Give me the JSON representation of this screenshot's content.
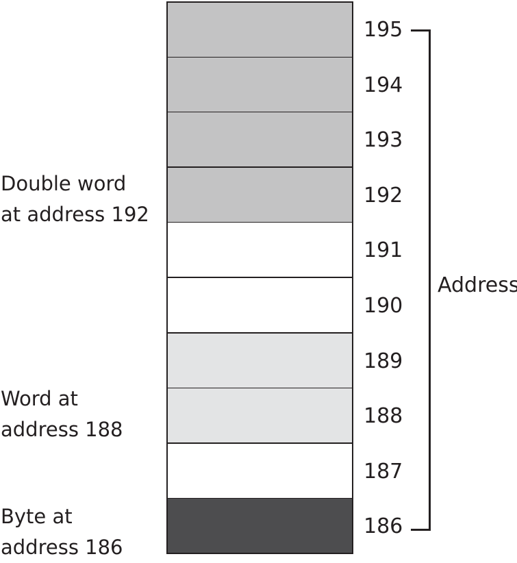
{
  "memory": {
    "cells": [
      {
        "address": "195",
        "fill": "#c3c3c4"
      },
      {
        "address": "194",
        "fill": "#c3c3c4"
      },
      {
        "address": "193",
        "fill": "#c3c3c4"
      },
      {
        "address": "192",
        "fill": "#c3c3c4"
      },
      {
        "address": "191",
        "fill": "#ffffff"
      },
      {
        "address": "190",
        "fill": "#ffffff"
      },
      {
        "address": "189",
        "fill": "#e3e4e5"
      },
      {
        "address": "188",
        "fill": "#e3e4e5"
      },
      {
        "address": "187",
        "fill": "#ffffff"
      },
      {
        "address": "186",
        "fill": "#4d4d4f"
      }
    ]
  },
  "labels": {
    "double_word": {
      "line1": "Double word",
      "line2": "at address 192"
    },
    "word": {
      "line1": "Word at",
      "line2": "address 188"
    },
    "byte": {
      "line1": "Byte at",
      "line2": "address 186"
    }
  },
  "axis": {
    "label": "Address"
  },
  "colors": {
    "stroke": "#231f20"
  }
}
